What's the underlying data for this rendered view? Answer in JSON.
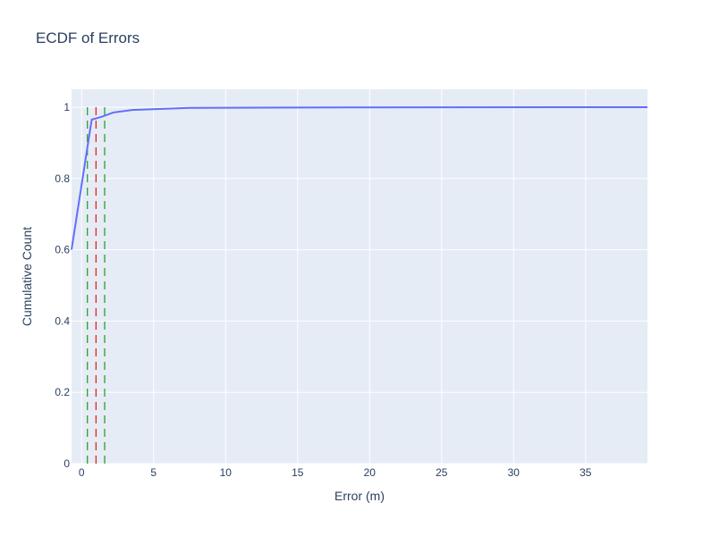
{
  "colors": {
    "plot_bg": "#e5ecf6",
    "grid": "#ffffff",
    "text": "#2a3f5f",
    "ecdf_line": "#636efa",
    "median_line": "#e8231a",
    "bound_lines": "#2ca02c"
  },
  "chart_data": {
    "type": "line",
    "title": "ECDF of Errors",
    "xlabel": "Error (m)",
    "ylabel": "Cumulative Count",
    "xlim": [
      -0.7,
      39.3
    ],
    "ylim": [
      0,
      1.05
    ],
    "xticks": [
      0,
      5,
      10,
      15,
      20,
      25,
      30,
      35
    ],
    "yticks": [
      0,
      0.2,
      0.4,
      0.6,
      0.8,
      1
    ],
    "ytick_labels": [
      "0",
      "0.2",
      "0.4",
      "0.6",
      "0.8",
      "1"
    ],
    "grid": true,
    "legend": false,
    "series": [
      {
        "x": [
          -0.7,
          0.7,
          1.4,
          2.2,
          3.5,
          7.5,
          15,
          39.3
        ],
        "y": [
          0.6,
          0.965,
          0.973,
          0.985,
          0.992,
          0.998,
          0.999,
          1.0
        ]
      }
    ],
    "vlines": [
      {
        "x": 0.4,
        "style": "dashed",
        "color": "#2ca02c"
      },
      {
        "x": 1.0,
        "style": "dashed",
        "color": "#e8231a"
      },
      {
        "x": 1.6,
        "style": "dashed",
        "color": "#2ca02c"
      }
    ]
  }
}
